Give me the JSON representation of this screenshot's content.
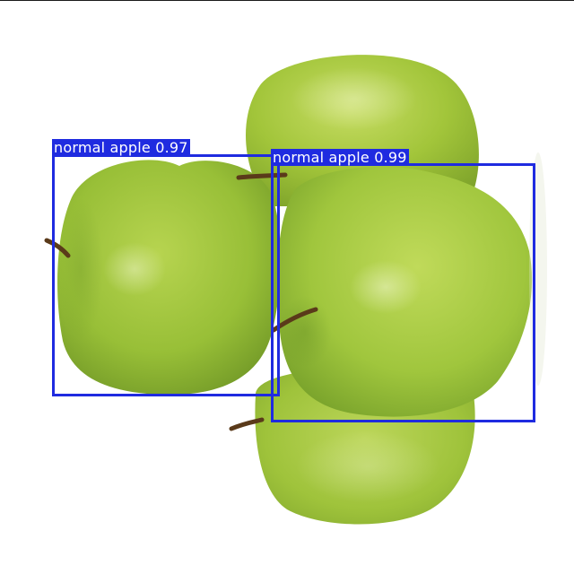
{
  "scene": {
    "apple_color": "#a3c83a",
    "stem_color": "#5a3a1a",
    "background_color": "#ffffff"
  },
  "detections": [
    {
      "label": "normal apple 0.97",
      "class": "normal apple",
      "confidence": 0.97
    },
    {
      "label": "normal apple 0.99",
      "class": "normal apple",
      "confidence": 0.99
    }
  ],
  "overlay": {
    "box_color": "#1f2be0",
    "label_text_color": "#ffffff"
  }
}
